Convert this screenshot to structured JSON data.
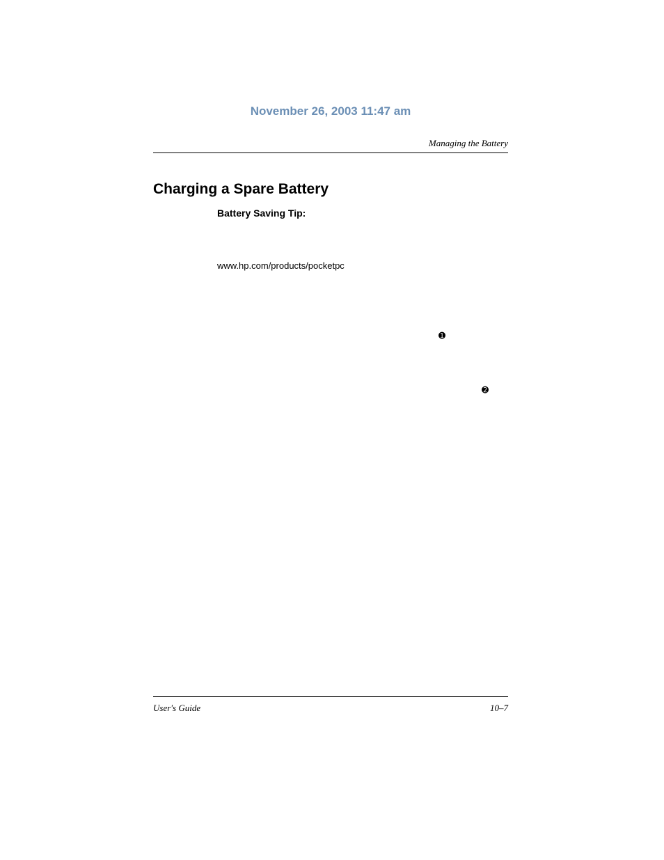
{
  "header": {
    "date": "November 26, 2003 11:47 am",
    "section": "Managing the Battery"
  },
  "content": {
    "heading": "Charging a Spare Battery",
    "tip_label": "Battery Saving Tip:",
    "url": "www.hp.com/products/pocketpc",
    "callout1": "➊",
    "callout2": "➋"
  },
  "footer": {
    "left": "User's Guide",
    "right": "10–7"
  },
  "colors": {
    "date_color": "#6b8fb5",
    "text_color": "#000000",
    "background": "#ffffff"
  },
  "typography": {
    "date_fontsize": 17,
    "heading_fontsize": 21,
    "tip_fontsize": 14,
    "body_fontsize": 13,
    "footer_fontsize": 13
  }
}
